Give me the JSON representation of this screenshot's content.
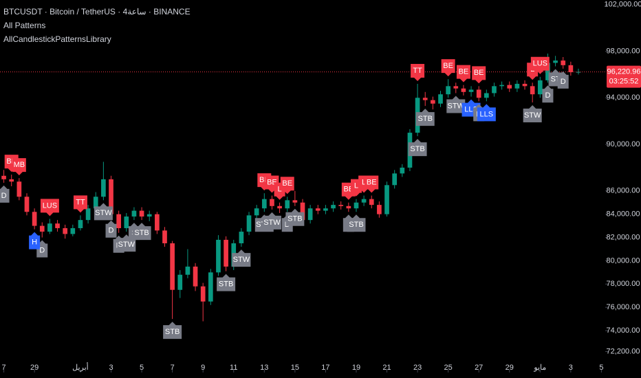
{
  "chart_data": {
    "type": "candlestick",
    "title": "BTCUSDT · Bitcoin / TetherUS · 4ساعة · BINANCE",
    "indicators": [
      "All Patterns",
      "AllCandlestickPatternsLibrary"
    ],
    "up_color": "#089981",
    "down_color": "#f23645",
    "open": [
      87300,
      87000,
      86800,
      85500,
      84200,
      83000,
      82500,
      83200,
      82800,
      82300,
      82800,
      83500,
      84500,
      85500,
      87000,
      84000,
      82800,
      83800,
      84300,
      83800,
      84000,
      82600,
      81500,
      77500,
      78800,
      79500,
      77800,
      76500,
      79000,
      81800,
      79500,
      81500,
      82500,
      83900,
      84500,
      85300,
      84700,
      84500,
      85200,
      85000,
      83500,
      84500,
      84300,
      84500,
      84800,
      84700,
      84500,
      85000,
      85300,
      84800,
      84000,
      86500,
      87500,
      88000,
      91000,
      94000,
      93800,
      93500,
      94300,
      95000,
      94800,
      94500,
      94700,
      94000,
      94400,
      95000,
      95100,
      94800,
      95200,
      95000,
      94300,
      95500,
      97000,
      97200,
      96800,
      96200
    ],
    "high": [
      87800,
      87400,
      87100,
      85800,
      84500,
      83300,
      83600,
      83500,
      83100,
      83100,
      83900,
      84800,
      85900,
      88500,
      87300,
      84300,
      84100,
      84600,
      84600,
      84300,
      84200,
      82900,
      81700,
      79200,
      81000,
      79800,
      78100,
      79300,
      82200,
      82100,
      81800,
      82800,
      84200,
      84800,
      85800,
      85600,
      85000,
      85500,
      86000,
      85300,
      84800,
      84800,
      84800,
      85100,
      85100,
      85000,
      85300,
      85600,
      85600,
      85100,
      86800,
      87800,
      88300,
      91300,
      95200,
      94500,
      94100,
      94600,
      95600,
      95300,
      95100,
      95000,
      95000,
      94700,
      95300,
      95400,
      95400,
      95500,
      95500,
      95300,
      95800,
      97800,
      97600,
      97500,
      97100,
      96500
    ],
    "low": [
      86700,
      86400,
      85200,
      83900,
      82700,
      82000,
      82300,
      82500,
      81900,
      82100,
      82600,
      83200,
      84200,
      85200,
      83700,
      82400,
      82500,
      83500,
      83500,
      83400,
      82300,
      81200,
      75000,
      76800,
      78500,
      77400,
      74800,
      76200,
      78700,
      79100,
      79200,
      81200,
      82200,
      83600,
      84200,
      84400,
      84100,
      84200,
      84700,
      83200,
      83200,
      84000,
      84000,
      84200,
      84400,
      84200,
      84200,
      84700,
      84500,
      83700,
      83800,
      86200,
      87200,
      87700,
      90700,
      93300,
      93000,
      93200,
      94000,
      94400,
      94200,
      94100,
      93700,
      93700,
      94100,
      94700,
      94500,
      94500,
      94700,
      93600,
      94000,
      95300,
      96700,
      96500,
      95900,
      96000
    ],
    "close": [
      87000,
      86800,
      85500,
      84200,
      83000,
      82500,
      83200,
      82800,
      82300,
      82800,
      83500,
      84500,
      85500,
      87000,
      84000,
      82800,
      83800,
      84300,
      83800,
      84000,
      82600,
      81500,
      77500,
      78800,
      79500,
      77800,
      76500,
      79000,
      81800,
      79500,
      81500,
      82500,
      83900,
      84500,
      85300,
      84700,
      84500,
      85200,
      85000,
      83500,
      84500,
      84300,
      84500,
      84800,
      84700,
      84500,
      85000,
      85300,
      84800,
      84000,
      86500,
      87500,
      88000,
      91000,
      94000,
      93800,
      93500,
      94300,
      95000,
      94800,
      94500,
      94700,
      94000,
      94400,
      95000,
      95100,
      94800,
      95200,
      95000,
      94300,
      95500,
      97000,
      97200,
      96800,
      96200,
      96220.96
    ],
    "xlim": [
      -0.5,
      78.5
    ],
    "xticks": [
      {
        "value": 0,
        "label": "7"
      },
      {
        "value": 4,
        "label": "29"
      },
      {
        "value": 10,
        "label": "أبريل"
      },
      {
        "value": 14,
        "label": "3"
      },
      {
        "value": 18,
        "label": "5"
      },
      {
        "value": 22,
        "label": "7"
      },
      {
        "value": 26,
        "label": "9"
      },
      {
        "value": 30,
        "label": "11"
      },
      {
        "value": 34,
        "label": "13"
      },
      {
        "value": 38,
        "label": "15"
      },
      {
        "value": 42,
        "label": "17"
      },
      {
        "value": 46,
        "label": "19"
      },
      {
        "value": 50,
        "label": "21"
      },
      {
        "value": 54,
        "label": "23"
      },
      {
        "value": 58,
        "label": "25"
      },
      {
        "value": 62,
        "label": "27"
      },
      {
        "value": 66,
        "label": "29"
      },
      {
        "value": 70,
        "label": "مايو"
      },
      {
        "value": 74,
        "label": "3"
      },
      {
        "value": 78,
        "label": "5"
      }
    ],
    "ylim": [
      71700,
      102400
    ],
    "yticks": [
      {
        "value": 102000,
        "label": "102,000.00"
      },
      {
        "value": 98000,
        "label": "98,000.00"
      },
      {
        "value": 94000,
        "label": "94,000.00"
      },
      {
        "value": 90000,
        "label": "90,000.00"
      },
      {
        "value": 86000,
        "label": "86,000.00"
      },
      {
        "value": 84000,
        "label": "84,000.00"
      },
      {
        "value": 82000,
        "label": "82,000.00"
      },
      {
        "value": 80000,
        "label": "80,000.00"
      },
      {
        "value": 78000,
        "label": "78,000.00"
      },
      {
        "value": 76000,
        "label": "76,000.00"
      },
      {
        "value": 74000,
        "label": "74,000.00"
      },
      {
        "value": 72200,
        "label": "72,200.00"
      }
    ],
    "last_price": {
      "value": 96220.96,
      "label": "96,220.96"
    },
    "countdown": "03:25:52",
    "annotations": [
      {
        "text": "BE",
        "index": 1,
        "side": "above",
        "color": "#f23645"
      },
      {
        "text": "MB",
        "index": 2,
        "side": "above",
        "color": "#f23645"
      },
      {
        "text": "D",
        "index": 0,
        "side": "below",
        "color": "#787b86"
      },
      {
        "text": "LUS",
        "index": 6,
        "side": "above",
        "color": "#f23645"
      },
      {
        "text": "D",
        "index": 5,
        "side": "below",
        "color": "#787b86"
      },
      {
        "text": "H",
        "index": 4,
        "side": "below",
        "color": "#2962ff"
      },
      {
        "text": "TT",
        "index": 10,
        "side": "above",
        "color": "#f23645"
      },
      {
        "text": "STW",
        "index": 13,
        "side": "below",
        "color": "#787b86"
      },
      {
        "text": "D",
        "index": 14,
        "side": "below",
        "color": "#787b86"
      },
      {
        "text": "D",
        "index": 15,
        "side": "below",
        "color": "#787b86"
      },
      {
        "text": "STW",
        "index": 16,
        "side": "below",
        "color": "#787b86"
      },
      {
        "text": "S",
        "index": 17,
        "side": "below",
        "color": "#787b86"
      },
      {
        "text": "STB",
        "index": 18,
        "side": "below",
        "color": "#787b86"
      },
      {
        "text": "STB",
        "index": 22,
        "side": "below",
        "color": "#787b86"
      },
      {
        "text": "STB",
        "index": 29,
        "side": "below",
        "color": "#787b86"
      },
      {
        "text": "STW",
        "index": 31,
        "side": "below",
        "color": "#787b86"
      },
      {
        "text": "BE",
        "index": 34,
        "side": "above",
        "color": "#f23645"
      },
      {
        "text": "BE",
        "index": 35,
        "side": "above",
        "color": "#f23645"
      },
      {
        "text": "L",
        "index": 36,
        "side": "above",
        "color": "#f23645"
      },
      {
        "text": "BE",
        "index": 37,
        "side": "above",
        "color": "#f23645"
      },
      {
        "text": "STW",
        "index": 34,
        "side": "below",
        "color": "#787b86"
      },
      {
        "text": "STW",
        "index": 35,
        "side": "below",
        "color": "#787b86"
      },
      {
        "text": "D",
        "index": 37,
        "side": "below",
        "color": "#787b86"
      },
      {
        "text": "STB",
        "index": 38,
        "side": "below",
        "color": "#787b86"
      },
      {
        "text": "BE",
        "index": 45,
        "side": "above",
        "color": "#f23645"
      },
      {
        "text": "L",
        "index": 46,
        "side": "above",
        "color": "#f23645"
      },
      {
        "text": "L",
        "index": 47,
        "side": "above",
        "color": "#f23645"
      },
      {
        "text": "BE",
        "index": 48,
        "side": "above",
        "color": "#f23645"
      },
      {
        "text": "I",
        "index": 45,
        "side": "below",
        "color": "#787b86"
      },
      {
        "text": "STB",
        "index": 46,
        "side": "below",
        "color": "#787b86"
      },
      {
        "text": "TT",
        "index": 54,
        "side": "above",
        "color": "#f23645"
      },
      {
        "text": "STB",
        "index": 54,
        "side": "below",
        "color": "#787b86"
      },
      {
        "text": "STB",
        "index": 55,
        "side": "below",
        "color": "#787b86"
      },
      {
        "text": "BE",
        "index": 58,
        "side": "above",
        "color": "#f23645"
      },
      {
        "text": "BE",
        "index": 60,
        "side": "above",
        "color": "#f23645"
      },
      {
        "text": "BE",
        "index": 62,
        "side": "above",
        "color": "#f23645"
      },
      {
        "text": "STW",
        "index": 59,
        "side": "below",
        "color": "#787b86"
      },
      {
        "text": "LLS",
        "index": 61,
        "side": "below",
        "color": "#2962ff"
      },
      {
        "text": "D",
        "index": 62,
        "side": "below",
        "color": "#787b86"
      },
      {
        "text": "LLS",
        "index": 63,
        "side": "below",
        "color": "#2962ff"
      },
      {
        "text": "L",
        "index": 69,
        "side": "above",
        "color": "#f23645"
      },
      {
        "text": "LUS",
        "index": 70,
        "side": "above",
        "color": "#f23645"
      },
      {
        "text": "STW",
        "index": 69,
        "side": "below",
        "color": "#787b86"
      },
      {
        "text": "D",
        "index": 71,
        "side": "below",
        "color": "#787b86"
      },
      {
        "text": "ST",
        "index": 72,
        "side": "below",
        "color": "#787b86"
      },
      {
        "text": "D",
        "index": 73,
        "side": "below",
        "color": "#787b86"
      }
    ]
  }
}
